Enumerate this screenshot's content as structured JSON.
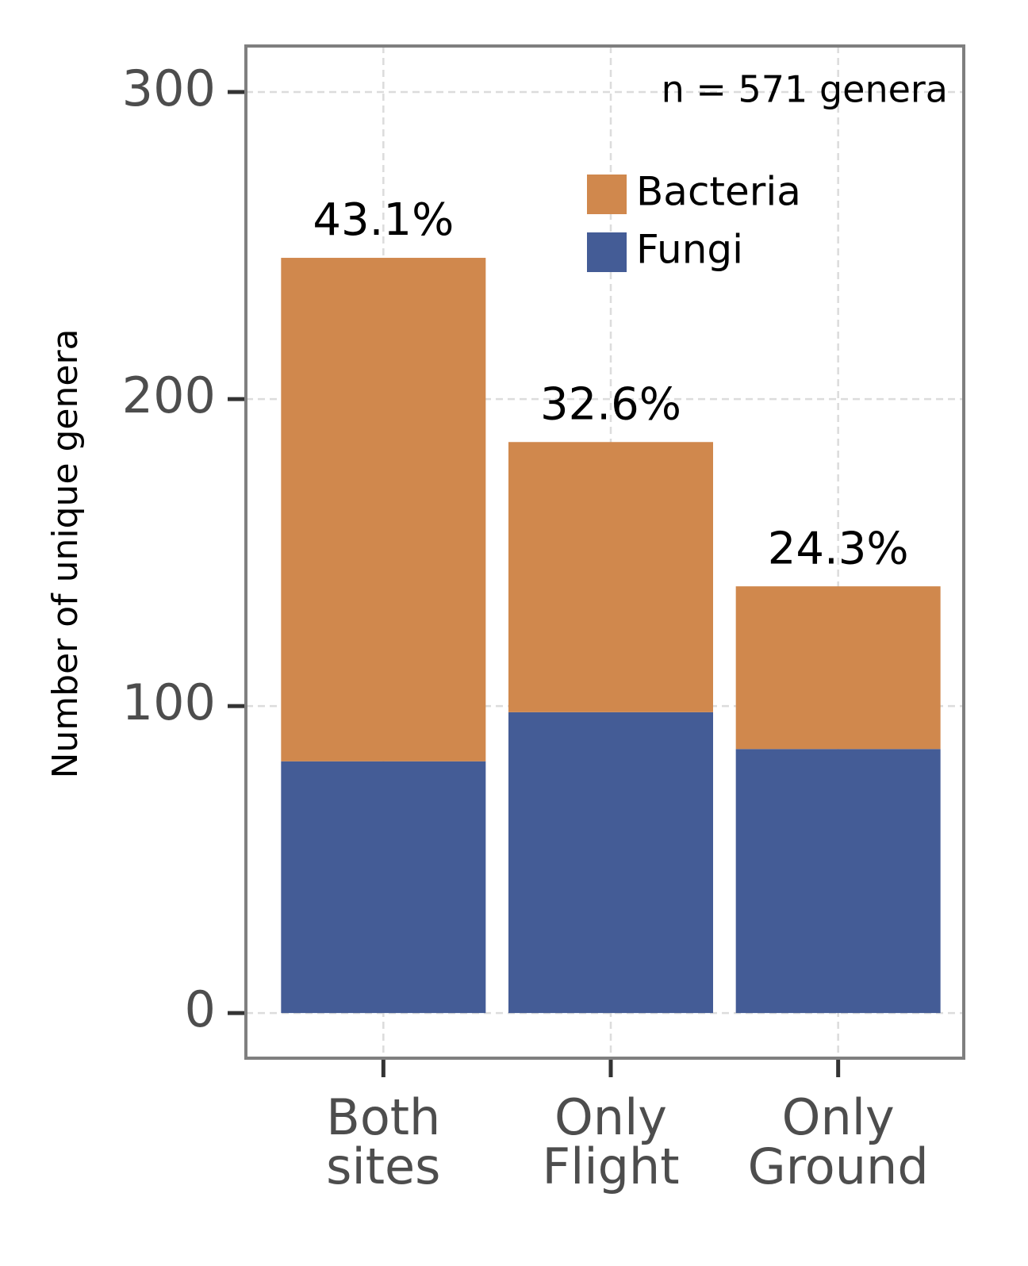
{
  "chart_data": {
    "type": "stacked_bar",
    "y_label": "Number of unique genera",
    "annotation": "n = 571 genera",
    "categories": [
      "Both\nsites",
      "Only\nFlight",
      "Only\nGround"
    ],
    "series": [
      {
        "name": "Bacteria",
        "color": "#d0884d",
        "values": [
          164,
          88,
          53
        ]
      },
      {
        "name": "Fungi",
        "color": "#445c96",
        "values": [
          82,
          98,
          86
        ]
      }
    ],
    "bar_labels": [
      {
        "value": 43.1,
        "label": "43.1%"
      },
      {
        "value": 32.6,
        "label": "32.6%"
      },
      {
        "value": 24.3,
        "label": "24.3%"
      }
    ],
    "ylim": [
      -14.7,
      315
    ],
    "yticks": [
      0,
      100,
      200,
      300
    ],
    "grid": true
  }
}
